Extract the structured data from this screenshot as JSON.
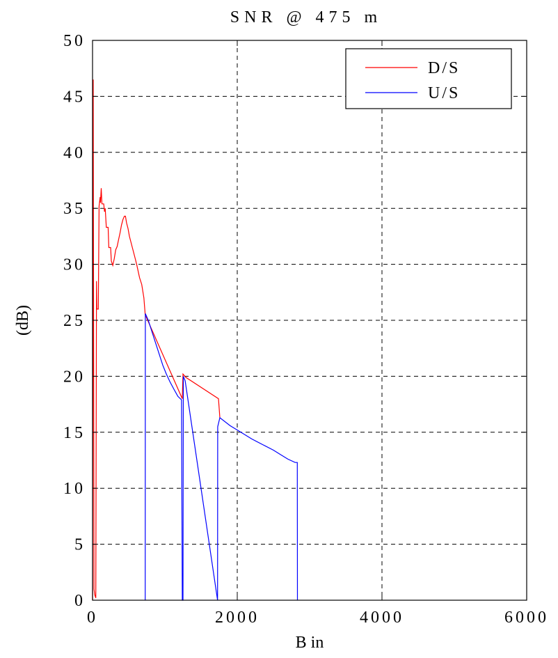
{
  "chart_data": {
    "type": "line",
    "title": "SNR @ 475 m",
    "xlabel": "B in",
    "ylabel": "(dB)",
    "xlim": [
      0,
      6000
    ],
    "ylim": [
      0,
      50
    ],
    "xticks": [
      0,
      2000,
      4000,
      6000
    ],
    "yticks": [
      0,
      5,
      10,
      15,
      20,
      25,
      30,
      35,
      40,
      45,
      50
    ],
    "grid": true,
    "legend_position": "top-right",
    "series": [
      {
        "name": "D/S",
        "color": "#ff0000",
        "points": [
          [
            0,
            0
          ],
          [
            10,
            46.5
          ],
          [
            20,
            1
          ],
          [
            30,
            0.5
          ],
          [
            45,
            0.2
          ],
          [
            55,
            28.5
          ],
          [
            60,
            26
          ],
          [
            80,
            26
          ],
          [
            90,
            35.2
          ],
          [
            105,
            36
          ],
          [
            110,
            35.5
          ],
          [
            120,
            36.8
          ],
          [
            130,
            35.4
          ],
          [
            155,
            35.4
          ],
          [
            165,
            34.7
          ],
          [
            175,
            35
          ],
          [
            190,
            33.3
          ],
          [
            215,
            33.3
          ],
          [
            225,
            31.5
          ],
          [
            250,
            31.5
          ],
          [
            260,
            30.3
          ],
          [
            280,
            29.9
          ],
          [
            300,
            30.5
          ],
          [
            320,
            31.3
          ],
          [
            340,
            31.6
          ],
          [
            360,
            32.2
          ],
          [
            380,
            32.8
          ],
          [
            400,
            33.5
          ],
          [
            420,
            34
          ],
          [
            440,
            34.3
          ],
          [
            455,
            34.3
          ],
          [
            470,
            33.7
          ],
          [
            490,
            33.2
          ],
          [
            510,
            32.5
          ],
          [
            530,
            32
          ],
          [
            550,
            31.5
          ],
          [
            570,
            31
          ],
          [
            590,
            30.5
          ],
          [
            610,
            30
          ],
          [
            630,
            29.4
          ],
          [
            650,
            28.8
          ],
          [
            680,
            28.2
          ],
          [
            710,
            27
          ],
          [
            728,
            25.5
          ],
          [
            1240,
            18
          ],
          [
            1250,
            20.2
          ],
          [
            1290,
            19.9
          ],
          [
            1740,
            18
          ],
          [
            1760,
            16.3
          ]
        ]
      },
      {
        "name": "U/S",
        "color": "#0000ff",
        "points": [
          [
            728,
            0
          ],
          [
            730,
            25.6
          ],
          [
            770,
            25
          ],
          [
            820,
            24
          ],
          [
            870,
            23
          ],
          [
            920,
            22
          ],
          [
            970,
            21
          ],
          [
            1020,
            20.2
          ],
          [
            1070,
            19.5
          ],
          [
            1120,
            18.9
          ],
          [
            1180,
            18.2
          ],
          [
            1230,
            17.9
          ],
          [
            1240,
            0
          ],
          [
            1250,
            0
          ],
          [
            1255,
            20
          ],
          [
            1280,
            19.6
          ],
          [
            1728,
            0
          ],
          [
            1730,
            15.5
          ],
          [
            1760,
            16.3
          ],
          [
            1900,
            15.6
          ],
          [
            2050,
            15
          ],
          [
            2200,
            14.4
          ],
          [
            2350,
            13.9
          ],
          [
            2500,
            13.4
          ],
          [
            2600,
            13
          ],
          [
            2700,
            12.6
          ],
          [
            2800,
            12.3
          ],
          [
            2830,
            12.3
          ],
          [
            2832,
            0
          ]
        ]
      }
    ]
  }
}
